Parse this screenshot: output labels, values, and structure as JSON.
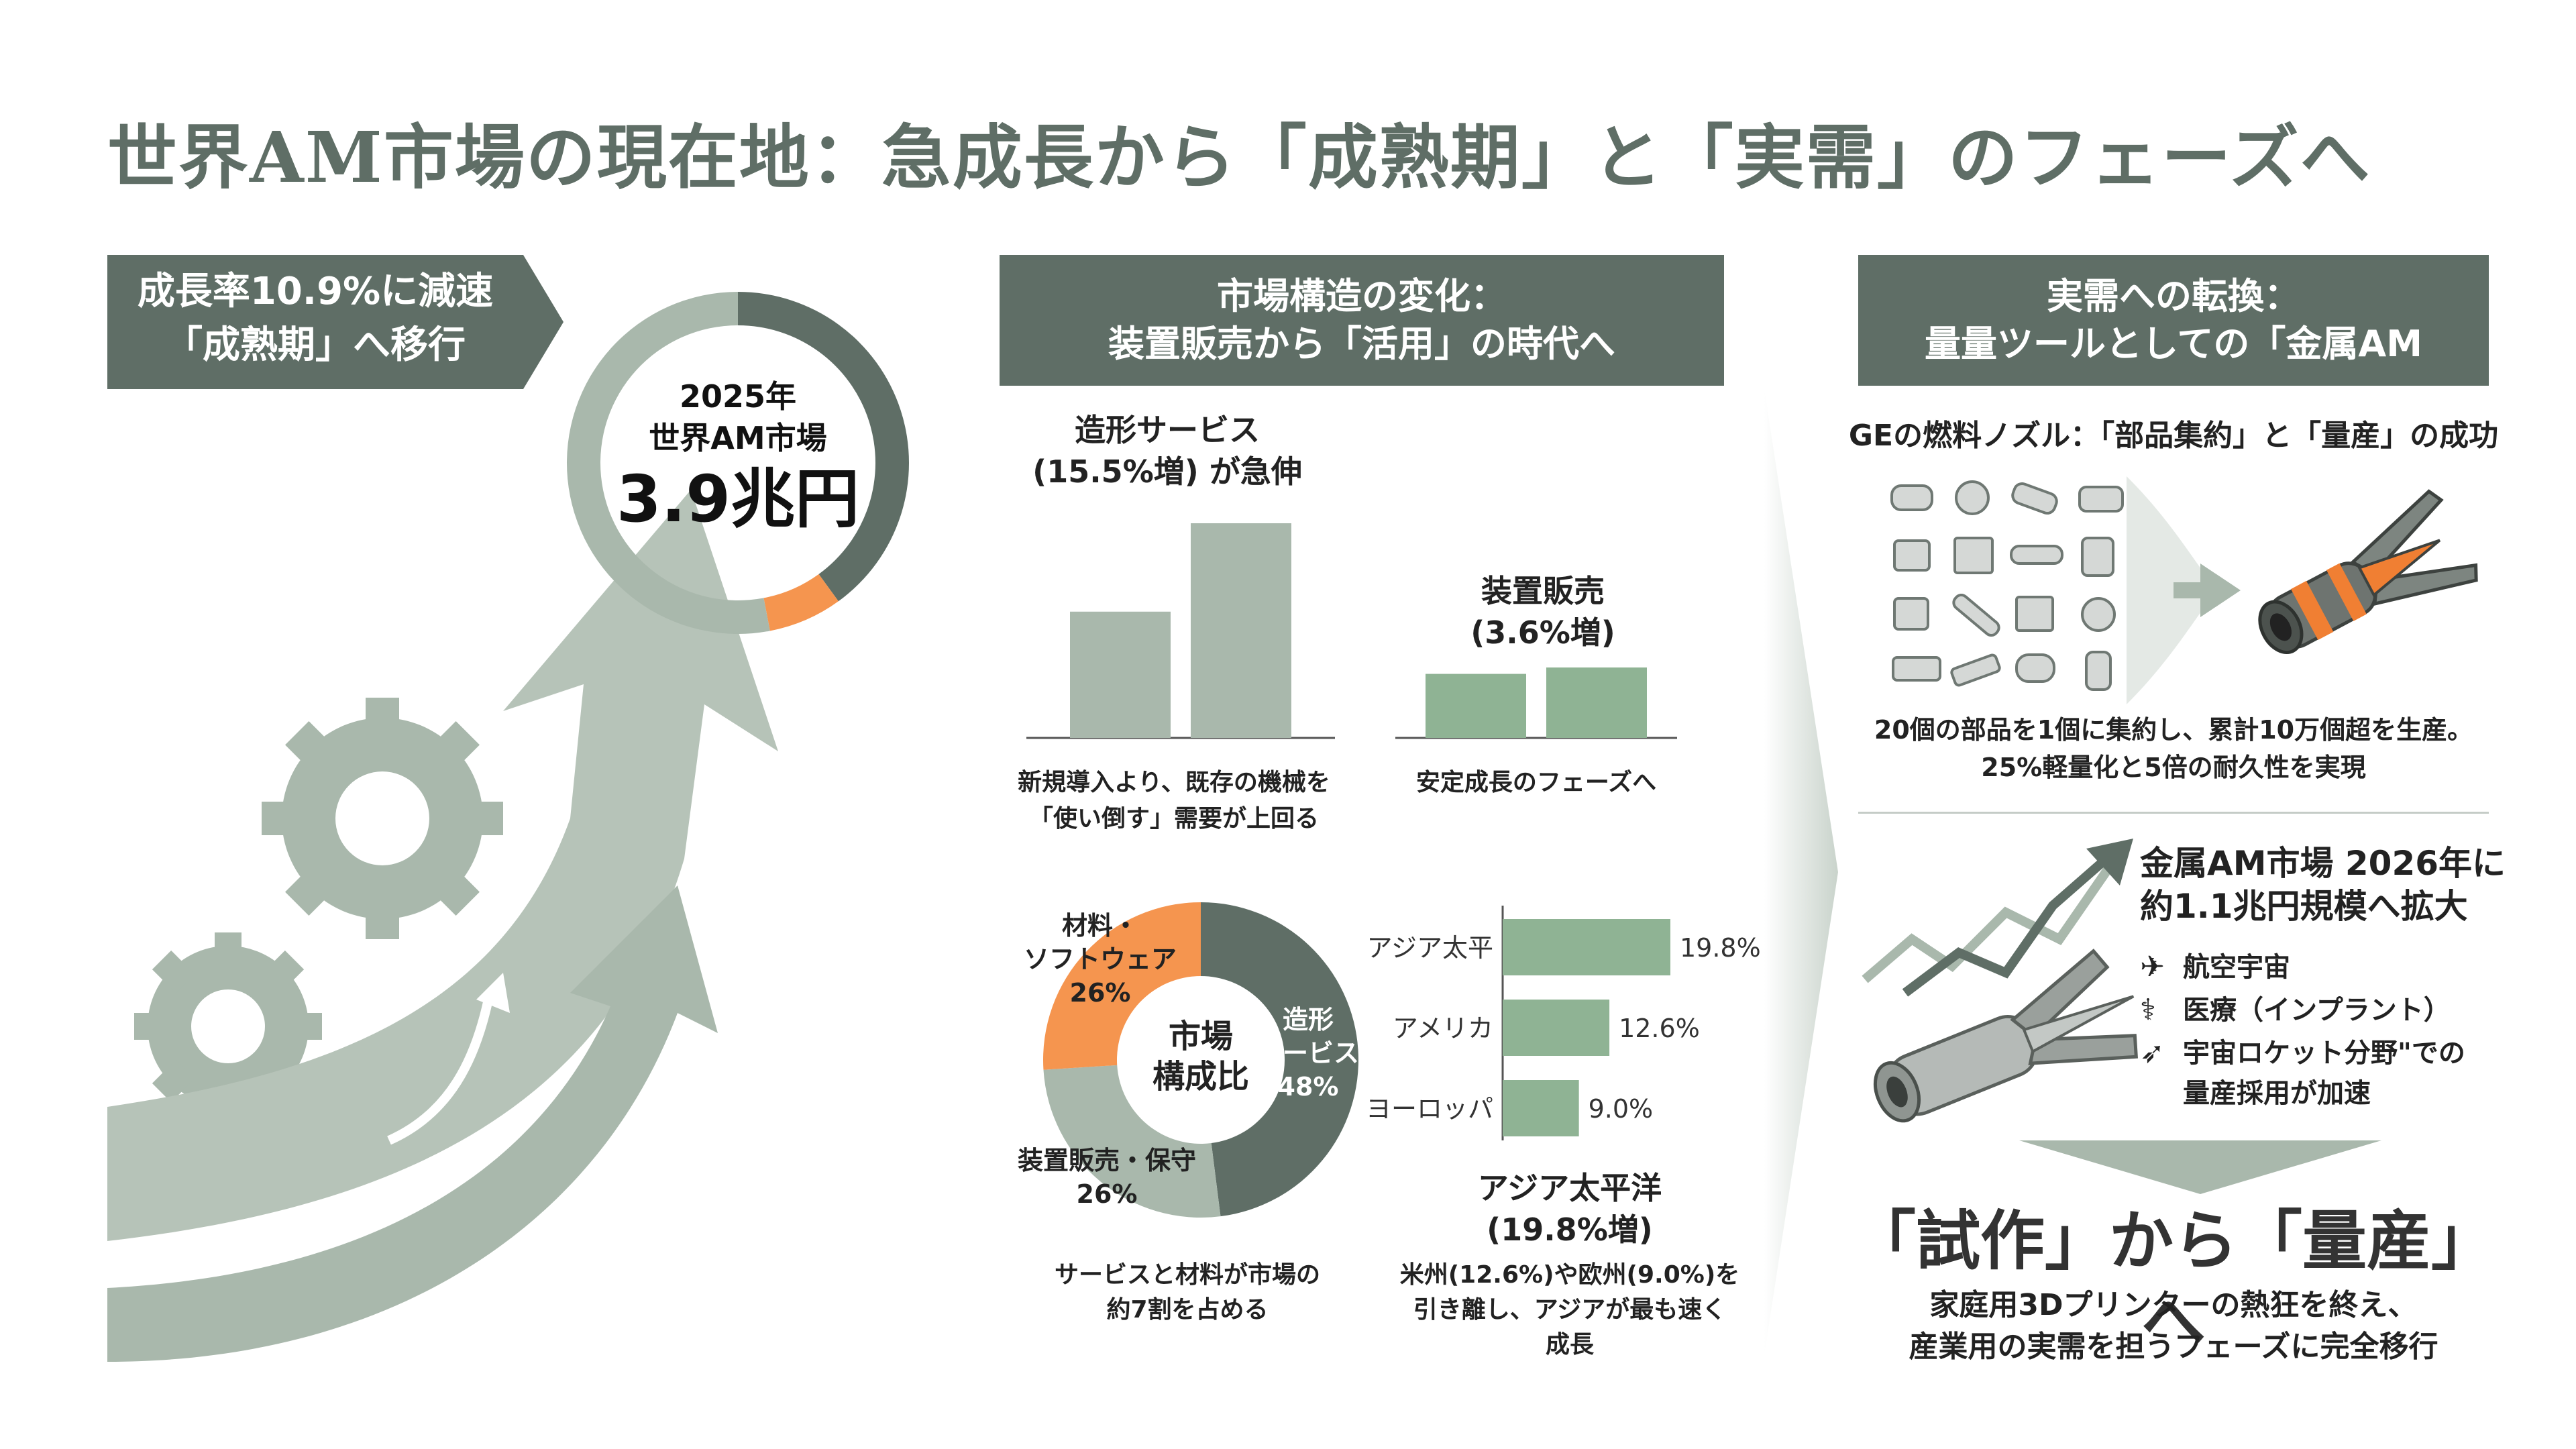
{
  "title": "世界AM市場の現在地：急成長から「成熟期」と「実需」のフェーズへ",
  "colors": {
    "dark": "#5f6e66",
    "sage": "#a9b8ac",
    "green": "#8fb394",
    "orange": "#f5954f",
    "white": "#ffffff"
  },
  "left": {
    "banner": [
      "成長率10.9%に減速",
      "「成熟期」へ移行"
    ],
    "donut_label": [
      "2025年",
      "世界AM市場"
    ],
    "donut_value": "3.9兆円",
    "donut_shares": {
      "dark": 0.4,
      "orange": 0.07,
      "sage": 0.53
    }
  },
  "middle": {
    "header": [
      "市場構造の変化：",
      "装置販売から「活用」の時代へ"
    ],
    "service": {
      "title": [
        "造形サービス",
        "(15.5%増) が急伸"
      ],
      "caption": [
        "新規導入より、既存の機械を",
        "「使い倒す」需要が上回る"
      ]
    },
    "device": {
      "title": [
        "装置販売",
        "(3.6%増)"
      ],
      "caption": "安定成長のフェーズへ"
    },
    "composition": {
      "center": [
        "市場",
        "構成比"
      ],
      "labels": {
        "materials": [
          "材料・",
          "ソフトウェア",
          "26%"
        ],
        "service": [
          "造形",
          "サービス",
          "48%"
        ],
        "device": [
          "装置販売・保守",
          "26%"
        ]
      },
      "caption": [
        "サービスと材料が市場の",
        "約7割を占める"
      ]
    },
    "region": {
      "bars": [
        {
          "label": "アジア太平",
          "value_label": "19.8%"
        },
        {
          "label": "アメリカ",
          "value_label": "12.6%"
        },
        {
          "label": "ヨーロッパ",
          "value_label": "9.0%"
        }
      ],
      "title": [
        "アジア太平洋",
        "(19.8%増)"
      ],
      "caption": [
        "米州(12.6%)や欧州(9.0%)を",
        "引き離し、アジアが最も速く",
        "成長"
      ]
    }
  },
  "right": {
    "header": [
      "実需への転換：",
      "量量ツールとしての「金属AM"
    ],
    "ge_title": "GEの燃料ノズル：「部品集約」と「量産」の成功",
    "ge_caption": [
      "20個の部品を1個に集約し、累計10万個超を生産。",
      "25%軽量化と5倍の耐久性を実現"
    ],
    "metal_title": [
      "金属AM市場 2026年に",
      "約1.1兆円規模へ拡大"
    ],
    "uses": [
      {
        "icon": "airplane-icon",
        "label": "航空宇宙"
      },
      {
        "icon": "implant-icon",
        "label": "医療（インプラント）"
      },
      {
        "icon": "rocket-icon",
        "label": "宇宙ロケット分野\"での"
      }
    ],
    "use_extra": "量産採用が加速",
    "slogan": "「試作」から「量産」へ",
    "slogan_sub": [
      "家庭用3Dプリンターの熱狂を終え、",
      "産業用の実需を担うフェーズに完全移行"
    ]
  },
  "chart_data": [
    {
      "type": "bar",
      "title": "造形サービス (15.5%増) が急伸",
      "categories": [
        "",
        ""
      ],
      "values": [
        1.0,
        1.7
      ]
    },
    {
      "type": "bar",
      "title": "装置販売 (3.6%増)",
      "categories": [
        "",
        ""
      ],
      "values": [
        1.0,
        1.1
      ]
    },
    {
      "type": "pie",
      "title": "市場構成比",
      "categories": [
        "造形サービス",
        "装置販売・保守",
        "材料・ソフトウェア"
      ],
      "values": [
        48,
        26,
        26
      ],
      "colors": [
        "#5f6e66",
        "#a9b8ac",
        "#f5954f"
      ]
    },
    {
      "type": "bar",
      "orientation": "horizontal",
      "categories": [
        "アジア太平",
        "アメリカ",
        "ヨーロッパ"
      ],
      "values": [
        19.8,
        12.6,
        9.0
      ],
      "value_labels": [
        "19.8%",
        "12.6%",
        "9.0%"
      ]
    }
  ]
}
